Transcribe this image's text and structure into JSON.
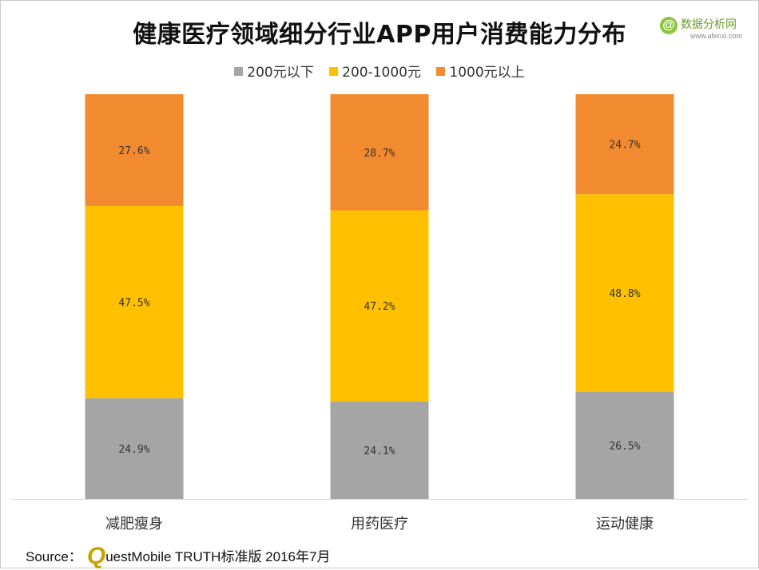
{
  "chart_data": {
    "type": "bar",
    "stacked": true,
    "normalized": true,
    "title": "健康医疗领域细分行业APP用户消费能力分布",
    "categories": [
      "减肥瘦身",
      "用药医疗",
      "运动健康"
    ],
    "series": [
      {
        "name": "200元以下",
        "color": "#a5a5a5",
        "values": [
          24.9,
          24.1,
          26.5
        ],
        "labels": [
          "24.9%",
          "24.1%",
          "26.5%"
        ]
      },
      {
        "name": "200-1000元",
        "color": "#ffc000",
        "values": [
          47.5,
          47.2,
          48.8
        ],
        "labels": [
          "47.5%",
          "47.2%",
          "48.8%"
        ]
      },
      {
        "name": "1000元以上",
        "color": "#f28a30",
        "values": [
          27.6,
          28.7,
          24.7
        ],
        "labels": [
          "27.6%",
          "28.7%",
          "24.7%"
        ]
      }
    ],
    "legend_position": "top",
    "grid": false,
    "ylim": [
      0,
      100
    ]
  },
  "logo": {
    "name": "数据分析网",
    "url": "www.afenxi.com",
    "mark": "@"
  },
  "source": {
    "prefix": "Source：",
    "brand_initial": "Q",
    "text": "uestMobile TRUTH标准版 2016年7月"
  }
}
